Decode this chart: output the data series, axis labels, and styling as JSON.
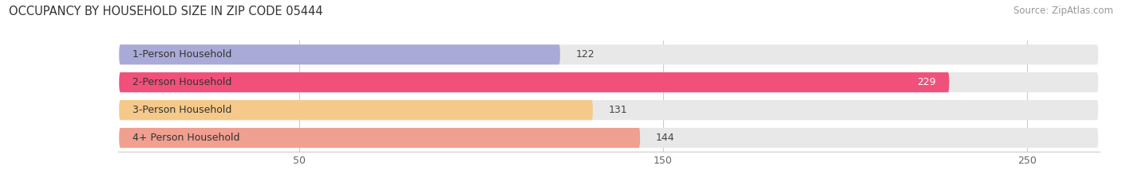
{
  "title": "OCCUPANCY BY HOUSEHOLD SIZE IN ZIP CODE 05444",
  "source": "Source: ZipAtlas.com",
  "categories": [
    "1-Person Household",
    "2-Person Household",
    "3-Person Household",
    "4+ Person Household"
  ],
  "values": [
    122,
    229,
    131,
    144
  ],
  "bar_colors": [
    "#aaaad8",
    "#f0507a",
    "#f5c98a",
    "#f0a090"
  ],
  "bar_bg_color": "#e8e8e8",
  "xlim": [
    0,
    270
  ],
  "xticks": [
    50,
    150,
    250
  ],
  "fig_bg": "#ffffff",
  "title_fontsize": 10.5,
  "label_fontsize": 9,
  "value_fontsize": 9,
  "source_fontsize": 8.5,
  "bar_height": 0.72,
  "bar_gap": 0.28
}
